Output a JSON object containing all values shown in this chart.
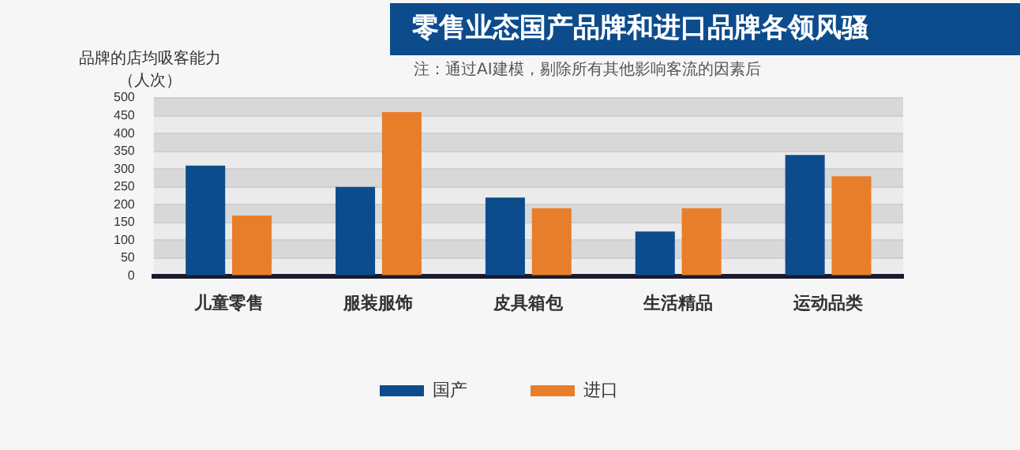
{
  "chart_data": {
    "type": "bar",
    "title": "零售业态国产品牌和进口品牌各领风骚",
    "subtitle": "注：通过AI建模，剔除所有其他影响客流的因素后",
    "ylabel": "品牌的店均吸客能力（人次）",
    "categories": [
      "儿童零售",
      "服装服饰",
      "皮具箱包",
      "生活精品",
      "运动品类"
    ],
    "series": [
      {
        "name": "国产",
        "color": "#0d4c8c",
        "values": [
          310,
          250,
          220,
          125,
          340
        ]
      },
      {
        "name": "进口",
        "color": "#e87d2a",
        "values": [
          170,
          460,
          190,
          190,
          280
        ]
      }
    ],
    "ylim": [
      0,
      500
    ],
    "yticks": [
      0,
      50,
      100,
      150,
      200,
      250,
      300,
      350,
      400,
      450,
      500
    ],
    "grid": "y",
    "legend": "bottom"
  }
}
